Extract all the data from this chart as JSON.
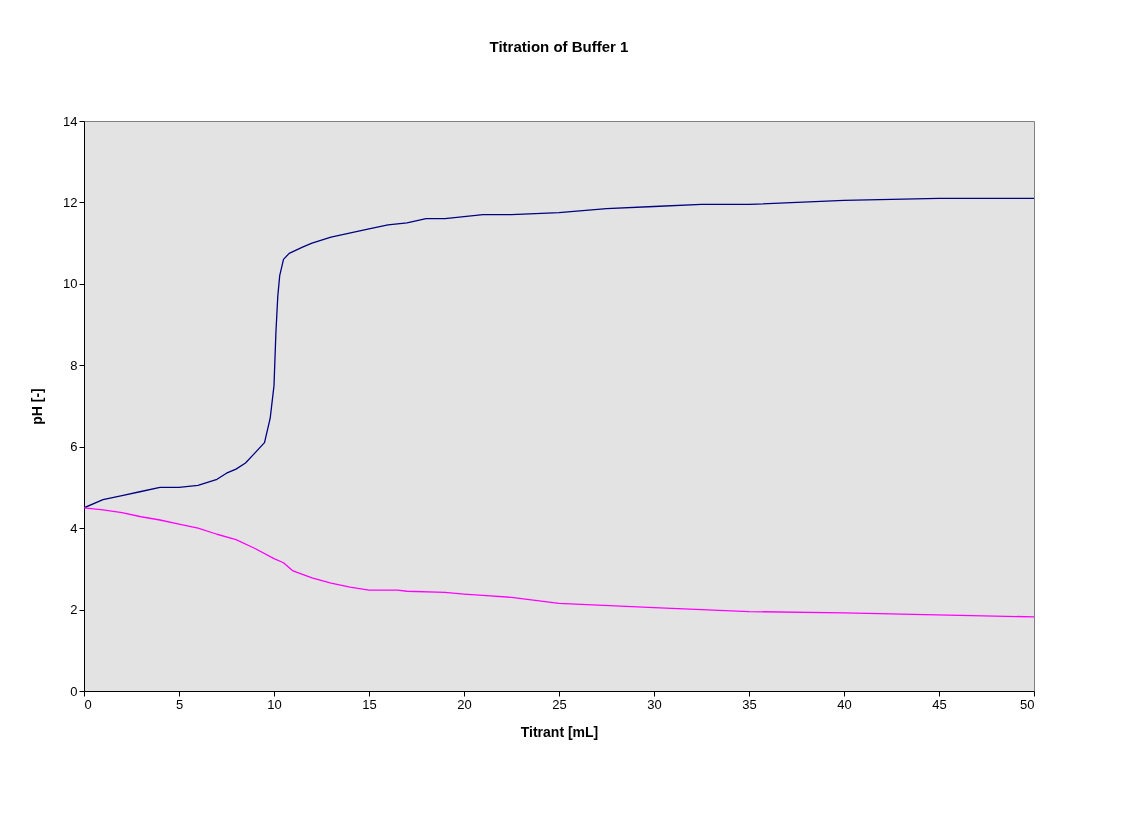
{
  "chart_data": {
    "type": "line",
    "title": "Titration of Buffer 1",
    "xlabel": "Titrant [mL]",
    "ylabel": "pH [-]",
    "xlim": [
      0,
      50
    ],
    "xticks": [
      0,
      5,
      10,
      15,
      20,
      25,
      30,
      35,
      40,
      45,
      50
    ],
    "ylim": [
      0,
      14
    ],
    "yticks": [
      0,
      2,
      4,
      6,
      8,
      10,
      12,
      14
    ],
    "grid": false,
    "marker": "none",
    "line_style": "solid",
    "series": [
      {
        "color": "#000080",
        "x": [
          0,
          1,
          2,
          3,
          4,
          5,
          6,
          7,
          7.5,
          8,
          8.5,
          9,
          9.5,
          9.8,
          10,
          10.1,
          10.2,
          10.3,
          10.5,
          10.8,
          11.5,
          12,
          13,
          15,
          16,
          17,
          18,
          19,
          20,
          21,
          22.5,
          25,
          27.5,
          30,
          32.5,
          35,
          40,
          45,
          50
        ],
        "values": [
          4.5,
          4.7,
          4.8,
          4.9,
          5.0,
          5.0,
          5.05,
          5.2,
          5.35,
          5.45,
          5.6,
          5.85,
          6.1,
          6.7,
          7.5,
          8.8,
          9.7,
          10.2,
          10.6,
          10.75,
          10.9,
          11.0,
          11.15,
          11.35,
          11.45,
          11.5,
          11.6,
          11.6,
          11.65,
          11.7,
          11.7,
          11.75,
          11.85,
          11.9,
          11.95,
          11.95,
          12.05,
          12.1,
          12.1
        ]
      },
      {
        "color": "#ff00ff",
        "x": [
          0,
          1,
          2,
          3,
          4,
          5,
          6,
          7,
          8,
          9,
          10,
          10.5,
          11,
          12,
          13,
          14,
          15,
          16.5,
          17,
          19,
          20,
          21,
          22.5,
          25,
          30,
          35,
          40,
          50
        ],
        "values": [
          4.5,
          4.45,
          4.38,
          4.28,
          4.2,
          4.1,
          4.0,
          3.85,
          3.72,
          3.5,
          3.25,
          3.15,
          2.95,
          2.78,
          2.65,
          2.55,
          2.48,
          2.48,
          2.45,
          2.42,
          2.38,
          2.35,
          2.3,
          2.15,
          2.05,
          1.95,
          1.92,
          1.82
        ]
      }
    ]
  }
}
